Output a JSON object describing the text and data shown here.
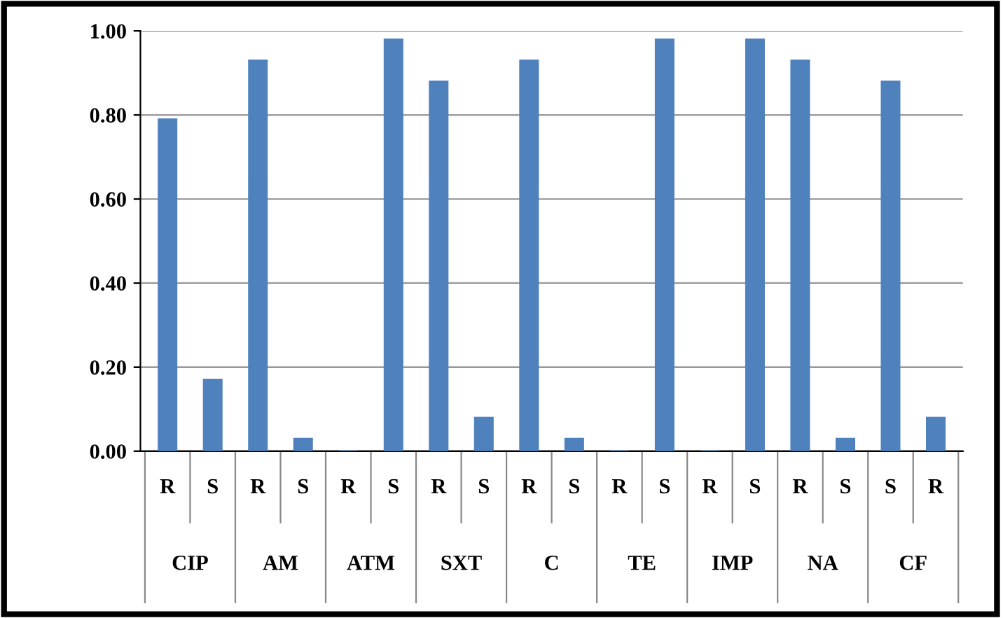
{
  "chart_data": {
    "type": "bar",
    "categories": [
      "R",
      "S",
      "R",
      "S",
      "R",
      "S",
      "R",
      "S",
      "R",
      "S",
      "R",
      "S",
      "R",
      "S",
      "R",
      "S",
      "S",
      "R"
    ],
    "values": [
      0.79,
      0.17,
      0.93,
      0.03,
      0.0,
      0.98,
      0.88,
      0.08,
      0.93,
      0.03,
      0.0,
      0.98,
      0.0,
      0.98,
      0.93,
      0.03,
      0.88,
      0.08
    ],
    "color": "#4f81bd",
    "annotations": [
      "CIP",
      "AM",
      "ATM",
      "SXT",
      "C",
      "TE",
      "IMP",
      "NA",
      "CF"
    ],
    "ylim": [
      0,
      1
    ],
    "yticks": [
      {
        "value": 0,
        "label": "0.00"
      },
      {
        "value": 0.2,
        "label": "0.20"
      },
      {
        "value": 0.4,
        "label": "0.40"
      },
      {
        "value": 0.6,
        "label": "0.60"
      },
      {
        "value": 0.8,
        "label": "0.80"
      },
      {
        "value": 1.0,
        "label": "1.00"
      }
    ],
    "grid": "y",
    "legend": false
  }
}
